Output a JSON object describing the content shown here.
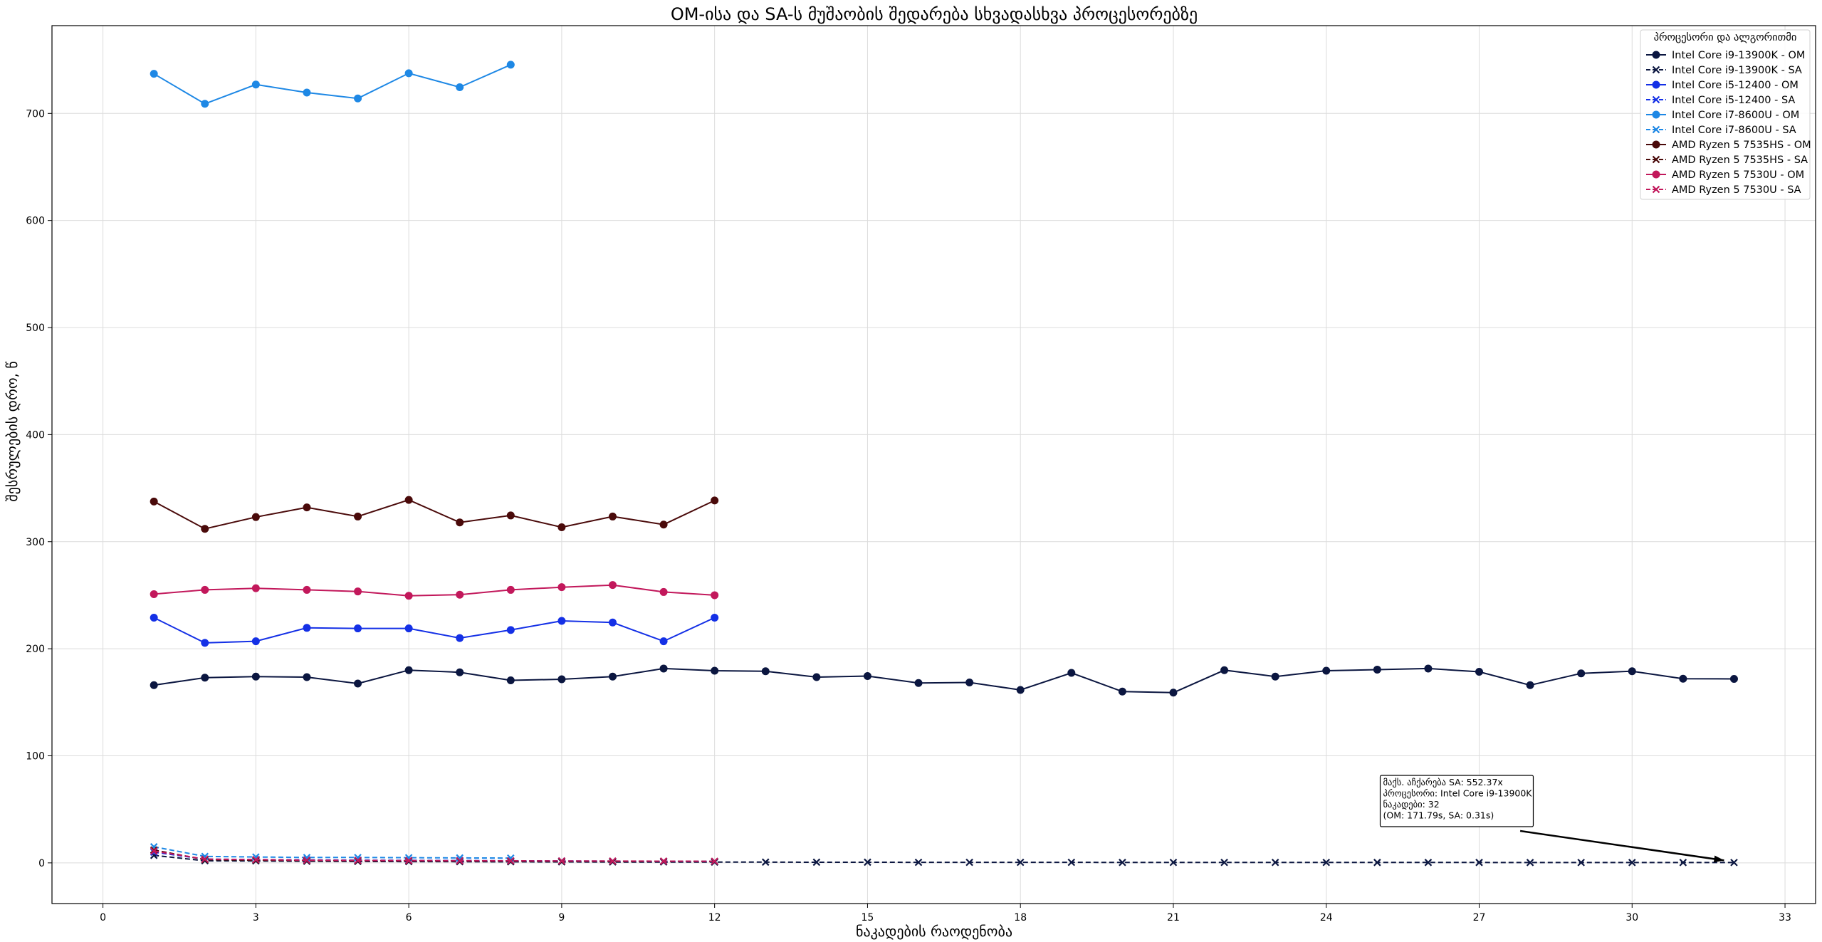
{
  "chart_data": {
    "type": "line",
    "title": "OM-ისა და SA-ს მუშაობის შედარება სხვადასხვა პროცესორებზე",
    "xlabel": "ნაკადების რაოდენობა",
    "ylabel": "შესრულების დრო, წ",
    "xlim": [
      -1,
      33.6
    ],
    "ylim": [
      -38,
      782
    ],
    "xticks": [
      0,
      3,
      6,
      9,
      12,
      15,
      18,
      21,
      24,
      27,
      30,
      33
    ],
    "yticks": [
      0,
      100,
      200,
      300,
      400,
      500,
      600,
      700
    ],
    "grid": true,
    "legend": {
      "title": "პროცესორი და ალგორითმი",
      "position": "top-right"
    },
    "series": [
      {
        "name": "Intel Core i9-13900K - OM",
        "color": "#0b1640",
        "marker": "o",
        "linestyle": "solid",
        "x": [
          1,
          2,
          3,
          4,
          5,
          6,
          7,
          8,
          9,
          10,
          11,
          12,
          13,
          14,
          15,
          16,
          17,
          18,
          19,
          20,
          21,
          22,
          23,
          24,
          25,
          26,
          27,
          28,
          29,
          30,
          31,
          32
        ],
        "values": [
          166,
          173,
          174,
          173.5,
          167.5,
          180,
          178,
          170.5,
          171.5,
          174,
          181.5,
          179.5,
          179,
          173.5,
          174.5,
          168,
          168.5,
          161.5,
          177.5,
          160,
          159,
          180,
          174,
          179.5,
          180.5,
          181.5,
          178.5,
          166,
          177,
          179,
          172,
          171.8
        ]
      },
      {
        "name": "Intel Core i9-13900K - SA",
        "color": "#0b1640",
        "marker": "x",
        "linestyle": "dashed",
        "x": [
          1,
          2,
          3,
          4,
          5,
          6,
          7,
          8,
          9,
          10,
          11,
          12,
          13,
          14,
          15,
          16,
          17,
          18,
          19,
          20,
          21,
          22,
          23,
          24,
          25,
          26,
          27,
          28,
          29,
          30,
          31,
          32
        ],
        "values": [
          7,
          2,
          1.8,
          1.5,
          1.3,
          1.2,
          1.1,
          1,
          0.9,
          0.8,
          0.8,
          0.7,
          0.7,
          0.6,
          0.6,
          0.5,
          0.5,
          0.5,
          0.5,
          0.4,
          0.4,
          0.4,
          0.4,
          0.4,
          0.35,
          0.35,
          0.35,
          0.33,
          0.33,
          0.32,
          0.32,
          0.31
        ]
      },
      {
        "name": "Intel Core i5-12400 - OM",
        "color": "#1430e6",
        "marker": "o",
        "linestyle": "solid",
        "x": [
          1,
          2,
          3,
          4,
          5,
          6,
          7,
          8,
          9,
          10,
          11,
          12
        ],
        "values": [
          229,
          205.5,
          207,
          219.5,
          219,
          219,
          210,
          217.5,
          226,
          224.5,
          207,
          229
        ]
      },
      {
        "name": "Intel Core i5-12400 - SA",
        "color": "#1430e6",
        "marker": "x",
        "linestyle": "dashed",
        "x": [
          1,
          2,
          3,
          4,
          5,
          6,
          7,
          8,
          9,
          10,
          11,
          12
        ],
        "values": [
          10,
          3.5,
          3,
          2.8,
          2.5,
          2.3,
          2.2,
          2,
          1.8,
          1.6,
          1.5,
          1.4
        ]
      },
      {
        "name": "Intel Core i7-8600U - OM",
        "color": "#1e88e5",
        "marker": "o",
        "linestyle": "solid",
        "x": [
          1,
          2,
          3,
          4,
          5,
          6,
          7,
          8
        ],
        "values": [
          737,
          709,
          727,
          719.5,
          714,
          737.5,
          724.5,
          745.5
        ]
      },
      {
        "name": "Intel Core i7-8600U - SA",
        "color": "#1e88e5",
        "marker": "x",
        "linestyle": "dashed",
        "x": [
          1,
          2,
          3,
          4,
          5,
          6,
          7,
          8
        ],
        "values": [
          15,
          6,
          5.5,
          5,
          5,
          4.8,
          4.6,
          4.5
        ]
      },
      {
        "name": "AMD Ryzen 5 7535HS - OM",
        "color": "#4a0a0a",
        "marker": "o",
        "linestyle": "solid",
        "x": [
          1,
          2,
          3,
          4,
          5,
          6,
          7,
          8,
          9,
          10,
          11,
          12
        ],
        "values": [
          337.5,
          312,
          323,
          332,
          323.5,
          339,
          318,
          324.5,
          313.5,
          323.5,
          316,
          338.5
        ]
      },
      {
        "name": "AMD Ryzen 5 7535HS - SA",
        "color": "#4a0a0a",
        "marker": "x",
        "linestyle": "dashed",
        "x": [
          1,
          2,
          3,
          4,
          5,
          6,
          7,
          8,
          9,
          10,
          11,
          12
        ],
        "values": [
          12,
          3,
          2.5,
          2.2,
          2,
          1.9,
          1.8,
          1.7,
          1.6,
          1.5,
          1.5,
          1.4
        ]
      },
      {
        "name": "AMD Ryzen 5 7530U - OM",
        "color": "#c2185b",
        "marker": "o",
        "linestyle": "solid",
        "x": [
          1,
          2,
          3,
          4,
          5,
          6,
          7,
          8,
          9,
          10,
          11,
          12
        ],
        "values": [
          251,
          255,
          256.5,
          255,
          253.5,
          249.5,
          250.5,
          255,
          257.5,
          259.5,
          253,
          250
        ]
      },
      {
        "name": "AMD Ryzen 5 7530U - SA",
        "color": "#c2185b",
        "marker": "x",
        "linestyle": "dashed",
        "x": [
          1,
          2,
          3,
          4,
          5,
          6,
          7,
          8,
          9,
          10,
          11,
          12
        ],
        "values": [
          11,
          3.5,
          3,
          2.5,
          2.3,
          2.1,
          2,
          1.9,
          1.8,
          1.7,
          1.6,
          1.5
        ]
      }
    ],
    "annotation": {
      "lines": [
        "მაქს. აჩქარება SA: 552.37x",
        "პროცესორი: Intel Core i9-13900K",
        "ნაკადები: 32",
        "(OM: 171.79s, SA: 0.31s)"
      ],
      "target": {
        "x": 32,
        "y": 0.31
      },
      "anchor": {
        "x": 25.1,
        "y": 60
      }
    }
  }
}
